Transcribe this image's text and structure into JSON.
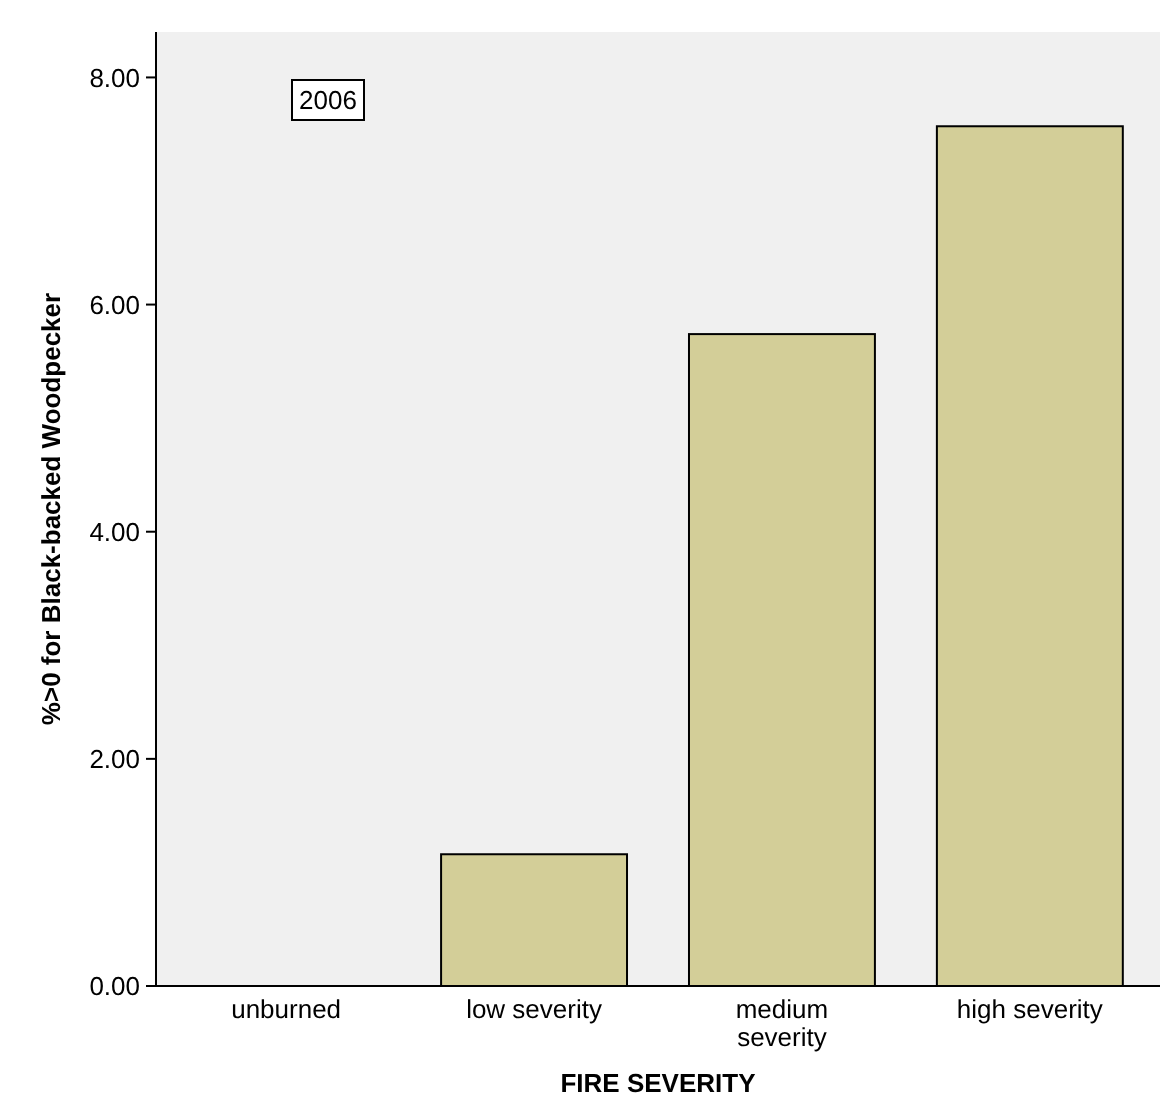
{
  "chart_data": {
    "type": "bar",
    "xlabel": "FIRE SEVERITY",
    "ylabel": "%>0 for Black-backed Woodpecker",
    "annotations": [
      "2006"
    ],
    "categories": [
      "unburned",
      "low severity",
      "medium severity",
      "high severity"
    ],
    "values": [
      0,
      1.16,
      5.74,
      7.57
    ],
    "color": "#d3ce98",
    "ylim": [
      0,
      8.4
    ],
    "yticks": [
      {
        "value": 0,
        "label": "0.00"
      },
      {
        "value": 2,
        "label": "2.00"
      },
      {
        "value": 4,
        "label": "4.00"
      },
      {
        "value": 6,
        "label": "6.00"
      },
      {
        "value": 8,
        "label": "8.00"
      }
    ],
    "grid": false
  }
}
